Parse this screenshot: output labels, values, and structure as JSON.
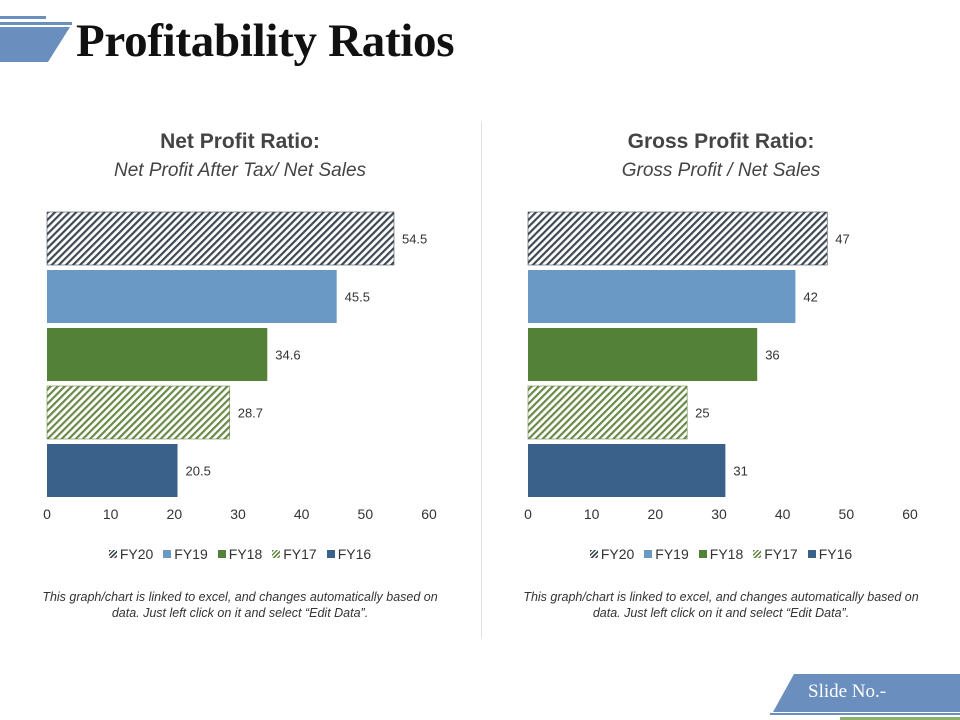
{
  "page": {
    "title": "Profitability Ratios",
    "slide_label": "Slide No.-"
  },
  "colors": {
    "FY20": "#404a55",
    "FY19": "#6a99c6",
    "FY18": "#528137",
    "FY17": "#6b8a4a",
    "FY16": "#3a6189",
    "accent": "#6a8fbe",
    "accent_light": "#8cb06a"
  },
  "note_text": "This graph/chart is linked to excel, and changes automatically based on data. Just left click on it and select “Edit Data”.",
  "chart_data": [
    {
      "type": "bar",
      "orientation": "horizontal",
      "title": "Net Profit Ratio:",
      "subtitle": "Net Profit After Tax/ Net Sales",
      "categories": [
        "FY20",
        "FY19",
        "FY18",
        "FY17",
        "FY16"
      ],
      "values": [
        54.5,
        45.5,
        34.6,
        28.7,
        20.5
      ],
      "labels": [
        "54.5",
        "45.5",
        "34.6",
        "28.7",
        "20.5"
      ],
      "xlim": [
        0,
        60
      ],
      "xticks": [
        "0",
        "10",
        "20",
        "30",
        "40",
        "50",
        "60"
      ],
      "legend": [
        "FY20",
        "FY19",
        "FY18",
        "FY17",
        "FY16"
      ],
      "legend_position": "bottom"
    },
    {
      "type": "bar",
      "orientation": "horizontal",
      "title": "Gross Profit Ratio:",
      "subtitle": "Gross Profit / Net Sales",
      "categories": [
        "FY20",
        "FY19",
        "FY18",
        "FY17",
        "FY16"
      ],
      "values": [
        47,
        42,
        36,
        25,
        31
      ],
      "labels": [
        "47",
        "42",
        "36",
        "25",
        "31"
      ],
      "xlim": [
        0,
        60
      ],
      "xticks": [
        "0",
        "10",
        "20",
        "30",
        "40",
        "50",
        "60"
      ],
      "legend": [
        "FY20",
        "FY19",
        "FY18",
        "FY17",
        "FY16"
      ],
      "legend_position": "bottom"
    }
  ]
}
